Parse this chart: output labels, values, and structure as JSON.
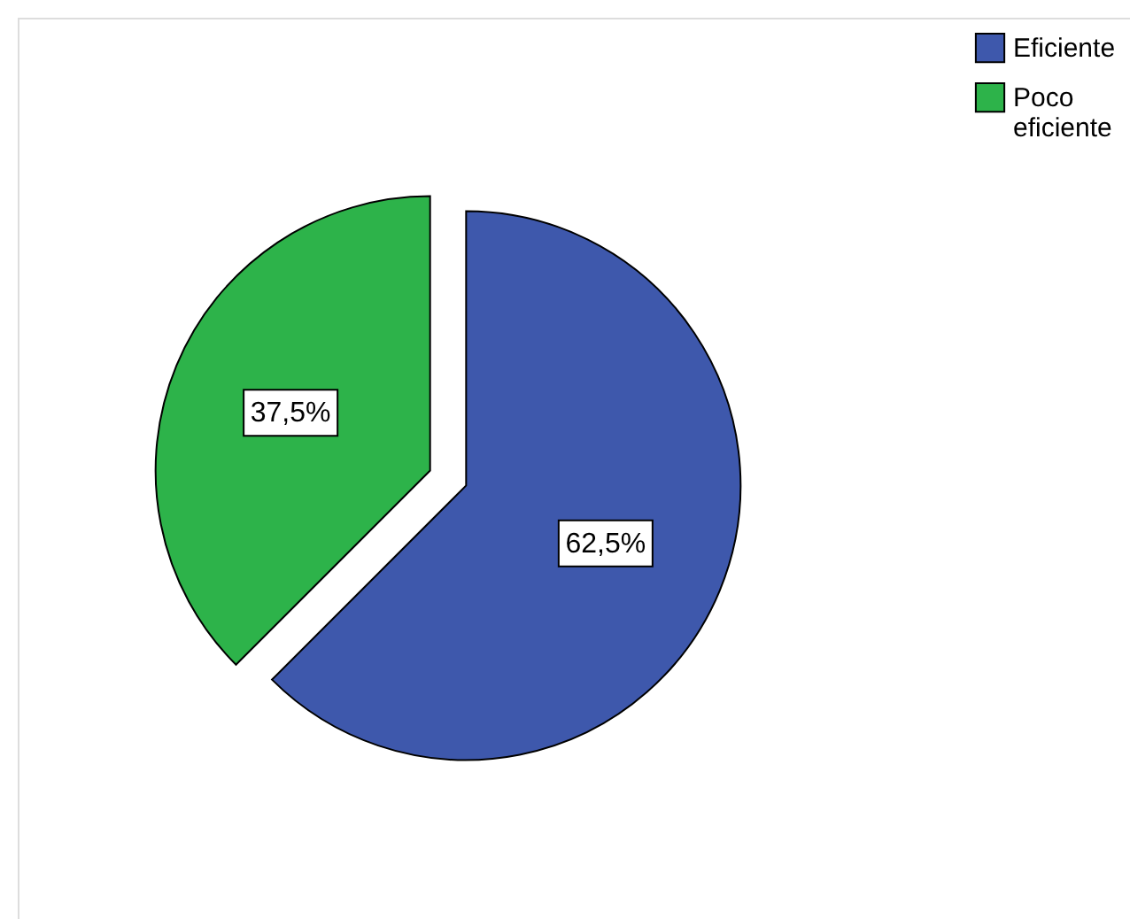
{
  "chart_data": {
    "type": "pie",
    "categories": [
      "Eficiente",
      "Poco eficiente"
    ],
    "values": [
      62.5,
      37.5
    ],
    "colors": [
      "#3e58ac",
      "#2db34a"
    ],
    "value_labels": [
      "62,5%",
      "37,5%"
    ],
    "legend": "top right"
  }
}
